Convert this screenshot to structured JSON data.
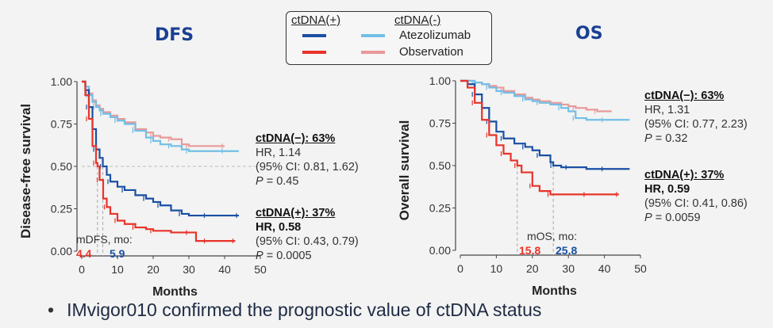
{
  "legend": {
    "pos_header": "ctDNA(+)",
    "neg_header": "ctDNA(-)",
    "row1": "Atezolizumab",
    "row2": "Observation"
  },
  "colors": {
    "pos_atezo": "#1a4fa3",
    "pos_obs": "#e8332a",
    "neg_atezo": "#72bfe6",
    "neg_obs": "#e9999a",
    "title": "#1a3f93"
  },
  "dfs": {
    "title": "DFS",
    "neg_block": {
      "label": "ctDNA(−): 63%",
      "hr": "HR, 1.14",
      "ci": "(95% CI: 0.81, 1.62)",
      "p_prefix": "P",
      "p_value": " = 0.45"
    },
    "pos_block": {
      "label": "ctDNA(+): 37%",
      "hr": "HR, 0.58",
      "ci": "(95% CI: 0.43, 0.79)",
      "p_prefix": "P",
      "p_value": " = 0.0005"
    },
    "median_label": "mDFS, mo:",
    "median_obs": "4.4",
    "median_atezo": "5.9"
  },
  "os": {
    "title": "OS",
    "neg_block": {
      "label": "ctDNA(−): 63%",
      "hr": "HR, 1.31",
      "ci": "(95% CI: 0.77, 2.23)",
      "p_prefix": "P",
      "p_value": " = 0.32"
    },
    "pos_block": {
      "label": "ctDNA(+): 37%",
      "hr": "HR, 0.59",
      "ci": "(95% CI: 0.41, 0.86)",
      "p_prefix": "P",
      "p_value": " = 0.0059"
    },
    "median_label": "mOS, mo:",
    "median_obs": "15.8",
    "median_atezo": "25.8"
  },
  "bullet": "IMvigor010 confirmed the prognostic value of ctDNA status",
  "chart_data": [
    {
      "type": "line",
      "title": "DFS",
      "xlabel": "Months",
      "ylabel": "Disease-free survival",
      "xlim": [
        0,
        50
      ],
      "ylim": [
        0,
        1
      ],
      "xticks": [
        "0",
        "10",
        "20",
        "30",
        "40",
        "50"
      ],
      "yticks": [
        "0.00",
        "0.25",
        "0.50",
        "0.75",
        "1.00"
      ],
      "series": [
        {
          "name": "ctDNA(-) Observation",
          "color_key": "neg_obs",
          "x": [
            0,
            1,
            2,
            3,
            4,
            5,
            6,
            8,
            10,
            12,
            15,
            18,
            20,
            22,
            25,
            28,
            30,
            35,
            40
          ],
          "values": [
            1,
            0.97,
            0.93,
            0.89,
            0.86,
            0.84,
            0.82,
            0.8,
            0.78,
            0.76,
            0.72,
            0.7,
            0.68,
            0.67,
            0.66,
            0.63,
            0.62,
            0.62,
            0.62
          ]
        },
        {
          "name": "ctDNA(-) Atezolizumab",
          "color_key": "neg_atezo",
          "x": [
            0,
            1,
            2,
            3,
            4,
            5,
            6,
            8,
            10,
            12,
            15,
            18,
            20,
            22,
            25,
            28,
            30,
            35,
            40,
            44
          ],
          "values": [
            1,
            0.97,
            0.92,
            0.88,
            0.85,
            0.83,
            0.81,
            0.79,
            0.77,
            0.75,
            0.71,
            0.67,
            0.65,
            0.63,
            0.62,
            0.6,
            0.59,
            0.59,
            0.59,
            0.59
          ]
        },
        {
          "name": "ctDNA(+) Atezolizumab",
          "color_key": "pos_atezo",
          "x": [
            0,
            1,
            2,
            3,
            4,
            5,
            5.9,
            7,
            8,
            10,
            12,
            15,
            18,
            20,
            22,
            25,
            28,
            30,
            35,
            40,
            44
          ],
          "values": [
            1,
            0.95,
            0.85,
            0.72,
            0.6,
            0.55,
            0.5,
            0.45,
            0.41,
            0.38,
            0.36,
            0.33,
            0.31,
            0.29,
            0.27,
            0.24,
            0.22,
            0.21,
            0.21,
            0.21,
            0.21
          ]
        },
        {
          "name": "ctDNA(+) Observation",
          "color_key": "pos_obs",
          "x": [
            0,
            1,
            2,
            3,
            4,
            4.4,
            5,
            6,
            7,
            8,
            10,
            12,
            15,
            18,
            20,
            25,
            30,
            32,
            35,
            40,
            43
          ],
          "values": [
            1,
            0.92,
            0.78,
            0.62,
            0.52,
            0.5,
            0.42,
            0.31,
            0.26,
            0.22,
            0.18,
            0.16,
            0.14,
            0.13,
            0.12,
            0.11,
            0.11,
            0.06,
            0.06,
            0.06,
            0.06
          ]
        }
      ],
      "annotations": [
        "mDFS, mo:",
        "4.4",
        "5.9"
      ]
    },
    {
      "type": "line",
      "title": "OS",
      "xlabel": "Months",
      "ylabel": "Overall survival",
      "xlim": [
        0,
        50
      ],
      "ylim": [
        0,
        1
      ],
      "xticks": [
        "0",
        "10",
        "20",
        "30",
        "40",
        "50"
      ],
      "yticks": [
        "0.00",
        "0.25",
        "0.50",
        "0.75",
        "1.00"
      ],
      "series": [
        {
          "name": "ctDNA(-) Observation",
          "color_key": "neg_obs",
          "x": [
            0,
            2,
            4,
            6,
            8,
            10,
            12,
            15,
            18,
            20,
            22,
            25,
            28,
            30,
            32,
            35,
            38,
            42
          ],
          "values": [
            1,
            1,
            0.99,
            0.98,
            0.97,
            0.96,
            0.94,
            0.92,
            0.9,
            0.89,
            0.88,
            0.87,
            0.86,
            0.85,
            0.84,
            0.83,
            0.82,
            0.82
          ]
        },
        {
          "name": "ctDNA(-) Atezolizumab",
          "color_key": "neg_atezo",
          "x": [
            0,
            2,
            4,
            6,
            8,
            10,
            12,
            15,
            18,
            20,
            22,
            25,
            28,
            30,
            32,
            35,
            40,
            47
          ],
          "values": [
            1,
            1,
            0.99,
            0.98,
            0.96,
            0.94,
            0.93,
            0.91,
            0.89,
            0.88,
            0.87,
            0.86,
            0.84,
            0.82,
            0.78,
            0.77,
            0.77,
            0.77
          ]
        },
        {
          "name": "ctDNA(+) Atezolizumab",
          "color_key": "pos_atezo",
          "x": [
            0,
            2,
            4,
            6,
            8,
            10,
            12,
            15,
            18,
            20,
            22,
            25,
            25.8,
            28,
            30,
            35,
            40,
            47
          ],
          "values": [
            1,
            0.98,
            0.92,
            0.84,
            0.76,
            0.7,
            0.66,
            0.63,
            0.61,
            0.59,
            0.56,
            0.52,
            0.5,
            0.49,
            0.49,
            0.48,
            0.48,
            0.48
          ]
        },
        {
          "name": "ctDNA(+) Observation",
          "color_key": "pos_obs",
          "x": [
            0,
            2,
            4,
            6,
            8,
            10,
            12,
            14,
            15.8,
            17,
            20,
            22,
            25,
            30,
            35,
            40,
            44
          ],
          "values": [
            1,
            0.96,
            0.87,
            0.77,
            0.68,
            0.62,
            0.57,
            0.53,
            0.5,
            0.46,
            0.38,
            0.35,
            0.33,
            0.33,
            0.33,
            0.33,
            0.33
          ]
        }
      ],
      "annotations": [
        "mOS, mo:",
        "15.8",
        "25.8"
      ]
    }
  ]
}
